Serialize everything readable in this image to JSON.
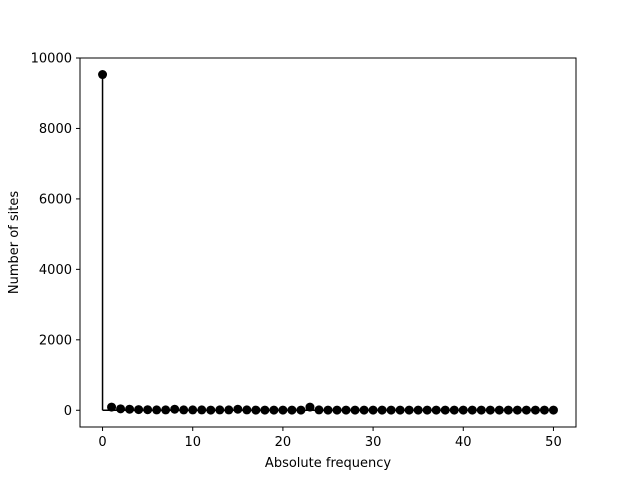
{
  "chart_data": {
    "type": "stem",
    "title": "",
    "xlabel": "Absolute frequency",
    "ylabel": "Number of sites",
    "xlim": [
      -2.5,
      52.5
    ],
    "ylim": [
      -475,
      10000
    ],
    "xticks": [
      0,
      10,
      20,
      30,
      40,
      50
    ],
    "yticks": [
      0,
      2000,
      4000,
      6000,
      8000,
      10000
    ],
    "grid": false,
    "marker_color": "#000000",
    "x": [
      0,
      1,
      2,
      3,
      4,
      5,
      6,
      7,
      8,
      9,
      10,
      11,
      12,
      13,
      14,
      15,
      16,
      17,
      18,
      19,
      20,
      21,
      22,
      23,
      24,
      25,
      26,
      27,
      28,
      29,
      30,
      31,
      32,
      33,
      34,
      35,
      36,
      37,
      38,
      39,
      40,
      41,
      42,
      43,
      44,
      45,
      46,
      47,
      48,
      49,
      50
    ],
    "values": [
      9530,
      90,
      40,
      30,
      20,
      15,
      10,
      10,
      30,
      10,
      10,
      10,
      5,
      10,
      10,
      30,
      10,
      5,
      5,
      5,
      5,
      5,
      5,
      90,
      10,
      5,
      5,
      5,
      5,
      5,
      5,
      5,
      5,
      5,
      5,
      5,
      5,
      5,
      5,
      5,
      5,
      5,
      5,
      5,
      5,
      5,
      5,
      5,
      5,
      5,
      5
    ]
  }
}
